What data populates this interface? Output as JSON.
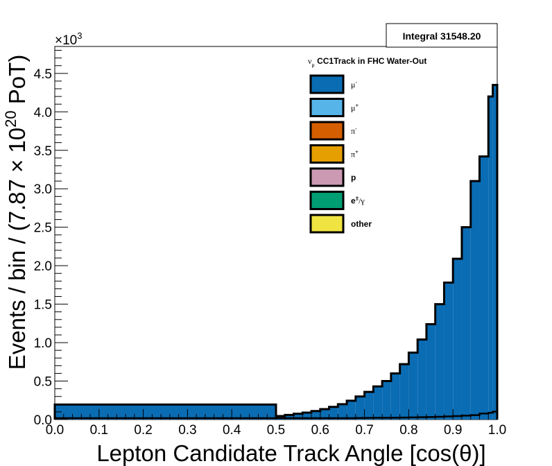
{
  "chart_data": {
    "type": "bar",
    "stacked": true,
    "histogram": true,
    "title": "",
    "xlabel": "Lepton Candidate Track Angle [cos(θ)]",
    "ylabel_parts": {
      "prefix": "Events / bin / (7.87 × 10",
      "exponent": "20",
      "suffix": " PoT)"
    },
    "y_multiplier": "×10",
    "y_multiplier_exp": "3",
    "integral_label": "Integral 31548.20",
    "legend_title": {
      "nu": "ν",
      "sub": "μ",
      "rest": " CC1Track in FHC Water-Out"
    },
    "legend_position": "top-right",
    "xlim": [
      0.0,
      1.0
    ],
    "ylim": [
      0,
      4.85
    ],
    "y_unit_scale": 1000,
    "x_ticks": [
      "0.0",
      "0.1",
      "0.2",
      "0.3",
      "0.4",
      "0.5",
      "0.6",
      "0.7",
      "0.8",
      "0.9",
      "1.0"
    ],
    "y_ticks": [
      "0.0",
      "0.5",
      "1.0",
      "1.5",
      "2.0",
      "2.5",
      "3.0",
      "3.5",
      "4.0",
      "4.5"
    ],
    "bin_edges": [
      0.0,
      0.5,
      0.52,
      0.54,
      0.56,
      0.58,
      0.6,
      0.62,
      0.64,
      0.66,
      0.68,
      0.7,
      0.72,
      0.74,
      0.76,
      0.78,
      0.8,
      0.82,
      0.84,
      0.86,
      0.88,
      0.9,
      0.92,
      0.94,
      0.96,
      0.98,
      0.99,
      1.0
    ],
    "series": [
      {
        "name": "μ-",
        "sup": "-",
        "base": "μ",
        "color": "#0a6cb3",
        "values": [
          0.195,
          0.045,
          0.06,
          0.075,
          0.09,
          0.11,
          0.135,
          0.165,
          0.2,
          0.245,
          0.3,
          0.36,
          0.43,
          0.5,
          0.6,
          0.72,
          0.87,
          1.04,
          1.24,
          1.5,
          1.78,
          2.09,
          2.5,
          3.1,
          3.42,
          4.2,
          4.35
        ]
      },
      {
        "name": "μ+",
        "sup": "+",
        "base": "μ",
        "color": "#56b4e9",
        "values": [
          0,
          0,
          0,
          0,
          0,
          0,
          0,
          0,
          0,
          0,
          0,
          0,
          0,
          0,
          0,
          0,
          0,
          0,
          0,
          0,
          0,
          0,
          0,
          0,
          0,
          0,
          0
        ]
      },
      {
        "name": "π-",
        "sup": "-",
        "base": "π",
        "color": "#d55e00",
        "values": [
          0,
          0,
          0,
          0,
          0,
          0,
          0,
          0,
          0,
          0,
          0,
          0,
          0,
          0,
          0,
          0,
          0,
          0,
          0,
          0,
          0,
          0,
          0,
          0,
          0,
          0,
          0
        ]
      },
      {
        "name": "π+",
        "sup": "+",
        "base": "π",
        "color": "#e69f00",
        "values": [
          0,
          0,
          0,
          0,
          0,
          0,
          0,
          0,
          0,
          0,
          0,
          0,
          0,
          0,
          0,
          0,
          0,
          0,
          0,
          0,
          0,
          0,
          0,
          0,
          0,
          0,
          0
        ]
      },
      {
        "name": "p",
        "sup": "",
        "base": "p",
        "color": "#cc99b3",
        "values": [
          0,
          0,
          0,
          0,
          0,
          0,
          0,
          0,
          0,
          0,
          0,
          0,
          0,
          0,
          0,
          0,
          0,
          0,
          0,
          0,
          0,
          0,
          0,
          0,
          0,
          0,
          0
        ]
      },
      {
        "name": "e±/γ",
        "sup": "±",
        "base": "e",
        "after": "/γ",
        "color": "#009e73",
        "values": [
          0,
          0,
          0,
          0,
          0,
          0,
          0,
          0,
          0,
          0,
          0,
          0,
          0,
          0,
          0,
          0,
          0,
          0,
          0,
          0,
          0,
          0,
          0,
          0,
          0,
          0,
          0
        ]
      },
      {
        "name": "other",
        "sup": "",
        "base": "other",
        "color": "#f0e442",
        "values": [
          0,
          0,
          0,
          0,
          0,
          0,
          0,
          0,
          0,
          0,
          0,
          0,
          0,
          0,
          0,
          0,
          0,
          0,
          0,
          0,
          0,
          0,
          0,
          0,
          0,
          0,
          0
        ]
      }
    ],
    "background_totals": [
      0,
      0,
      0,
      0,
      0,
      0,
      0,
      0,
      0,
      0,
      0.002,
      0.003,
      0.004,
      0.005,
      0.006,
      0.008,
      0.01,
      0.012,
      0.015,
      0.018,
      0.022,
      0.027,
      0.033,
      0.04,
      0.06,
      0.07,
      0.085
    ],
    "colors": {
      "background_fill": "#000000"
    }
  }
}
